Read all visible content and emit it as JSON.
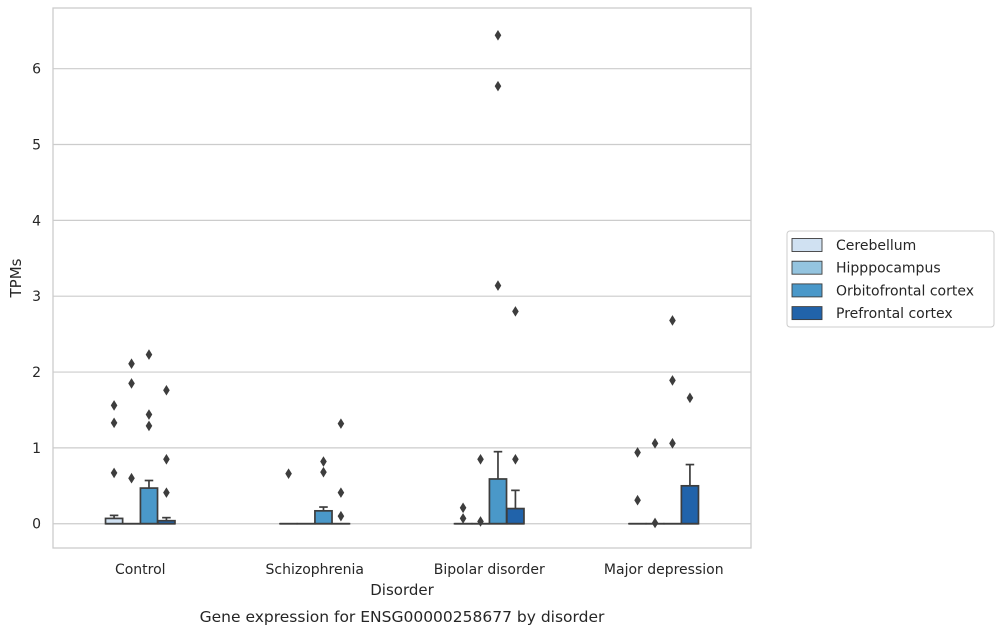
{
  "chart_data": {
    "type": "box",
    "title": "Gene expression for ENSG00000258677 by disorder",
    "xlabel": "Disorder",
    "ylabel": "TPMs",
    "ylim": [
      -0.32,
      6.8
    ],
    "yticks": [
      0,
      1,
      2,
      3,
      4,
      5,
      6
    ],
    "grid": "horizontal",
    "legend_position": "right",
    "categories": [
      "Control",
      "Schizophrenia",
      "Bipolar disorder",
      "Major depression"
    ],
    "series": [
      {
        "name": "Cerebellum",
        "color": "#d0e1f2",
        "boxes": [
          {
            "q1": 0,
            "median": 0,
            "q3": 0.07,
            "whisker_low": 0,
            "whisker_high": 0.11,
            "outliers": [
              0.67,
              1.33,
              1.56
            ]
          },
          {
            "q1": 0,
            "median": 0,
            "q3": 0,
            "whisker_low": 0,
            "whisker_high": 0,
            "outliers": [
              0.66
            ]
          },
          {
            "q1": 0,
            "median": 0,
            "q3": 0,
            "whisker_low": 0,
            "whisker_high": 0,
            "outliers": [
              0.07,
              0.21
            ]
          },
          {
            "q1": 0,
            "median": 0,
            "q3": 0,
            "whisker_low": 0,
            "whisker_high": 0,
            "outliers": [
              0.31,
              0.94
            ]
          }
        ]
      },
      {
        "name": "Hipppocampus",
        "color": "#94c4df",
        "boxes": [
          {
            "q1": 0,
            "median": 0,
            "q3": 0,
            "whisker_low": 0,
            "whisker_high": 0,
            "outliers": [
              0.6,
              1.85,
              2.11
            ]
          },
          {
            "q1": 0,
            "median": 0,
            "q3": 0,
            "whisker_low": 0,
            "whisker_high": 0,
            "outliers": []
          },
          {
            "q1": 0,
            "median": 0,
            "q3": 0,
            "whisker_low": 0,
            "whisker_high": 0,
            "outliers": [
              0.03,
              0.85
            ]
          },
          {
            "q1": 0,
            "median": 0,
            "q3": 0,
            "whisker_low": 0,
            "whisker_high": 0,
            "outliers": [
              0.01,
              1.06
            ]
          }
        ]
      },
      {
        "name": "Orbitofrontal cortex",
        "color": "#4a98c9",
        "boxes": [
          {
            "q1": 0,
            "median": 0,
            "q3": 0.47,
            "whisker_low": 0,
            "whisker_high": 0.57,
            "outliers": [
              1.29,
              1.44,
              2.23
            ]
          },
          {
            "q1": 0,
            "median": 0,
            "q3": 0.17,
            "whisker_low": 0,
            "whisker_high": 0.22,
            "outliers": [
              0.68,
              0.82
            ]
          },
          {
            "q1": 0,
            "median": 0,
            "q3": 0.59,
            "whisker_low": 0,
            "whisker_high": 0.95,
            "outliers": [
              3.14,
              5.77,
              6.44
            ]
          },
          {
            "q1": 0,
            "median": 0,
            "q3": 0,
            "whisker_low": 0,
            "whisker_high": 0,
            "outliers": [
              1.06,
              1.89,
              2.68
            ]
          }
        ]
      },
      {
        "name": "Prefrontal cortex",
        "color": "#2163aa",
        "boxes": [
          {
            "q1": 0,
            "median": 0,
            "q3": 0.04,
            "whisker_low": 0,
            "whisker_high": 0.08,
            "outliers": [
              0.41,
              0.85,
              1.76
            ]
          },
          {
            "q1": 0,
            "median": 0,
            "q3": 0,
            "whisker_low": 0,
            "whisker_high": 0,
            "outliers": [
              0.1,
              0.41,
              1.32
            ]
          },
          {
            "q1": 0,
            "median": 0,
            "q3": 0.2,
            "whisker_low": 0,
            "whisker_high": 0.44,
            "outliers": [
              0.85,
              2.8
            ]
          },
          {
            "q1": 0,
            "median": 0,
            "q3": 0.5,
            "whisker_low": 0,
            "whisker_high": 0.78,
            "outliers": [
              1.66
            ]
          }
        ]
      }
    ]
  }
}
